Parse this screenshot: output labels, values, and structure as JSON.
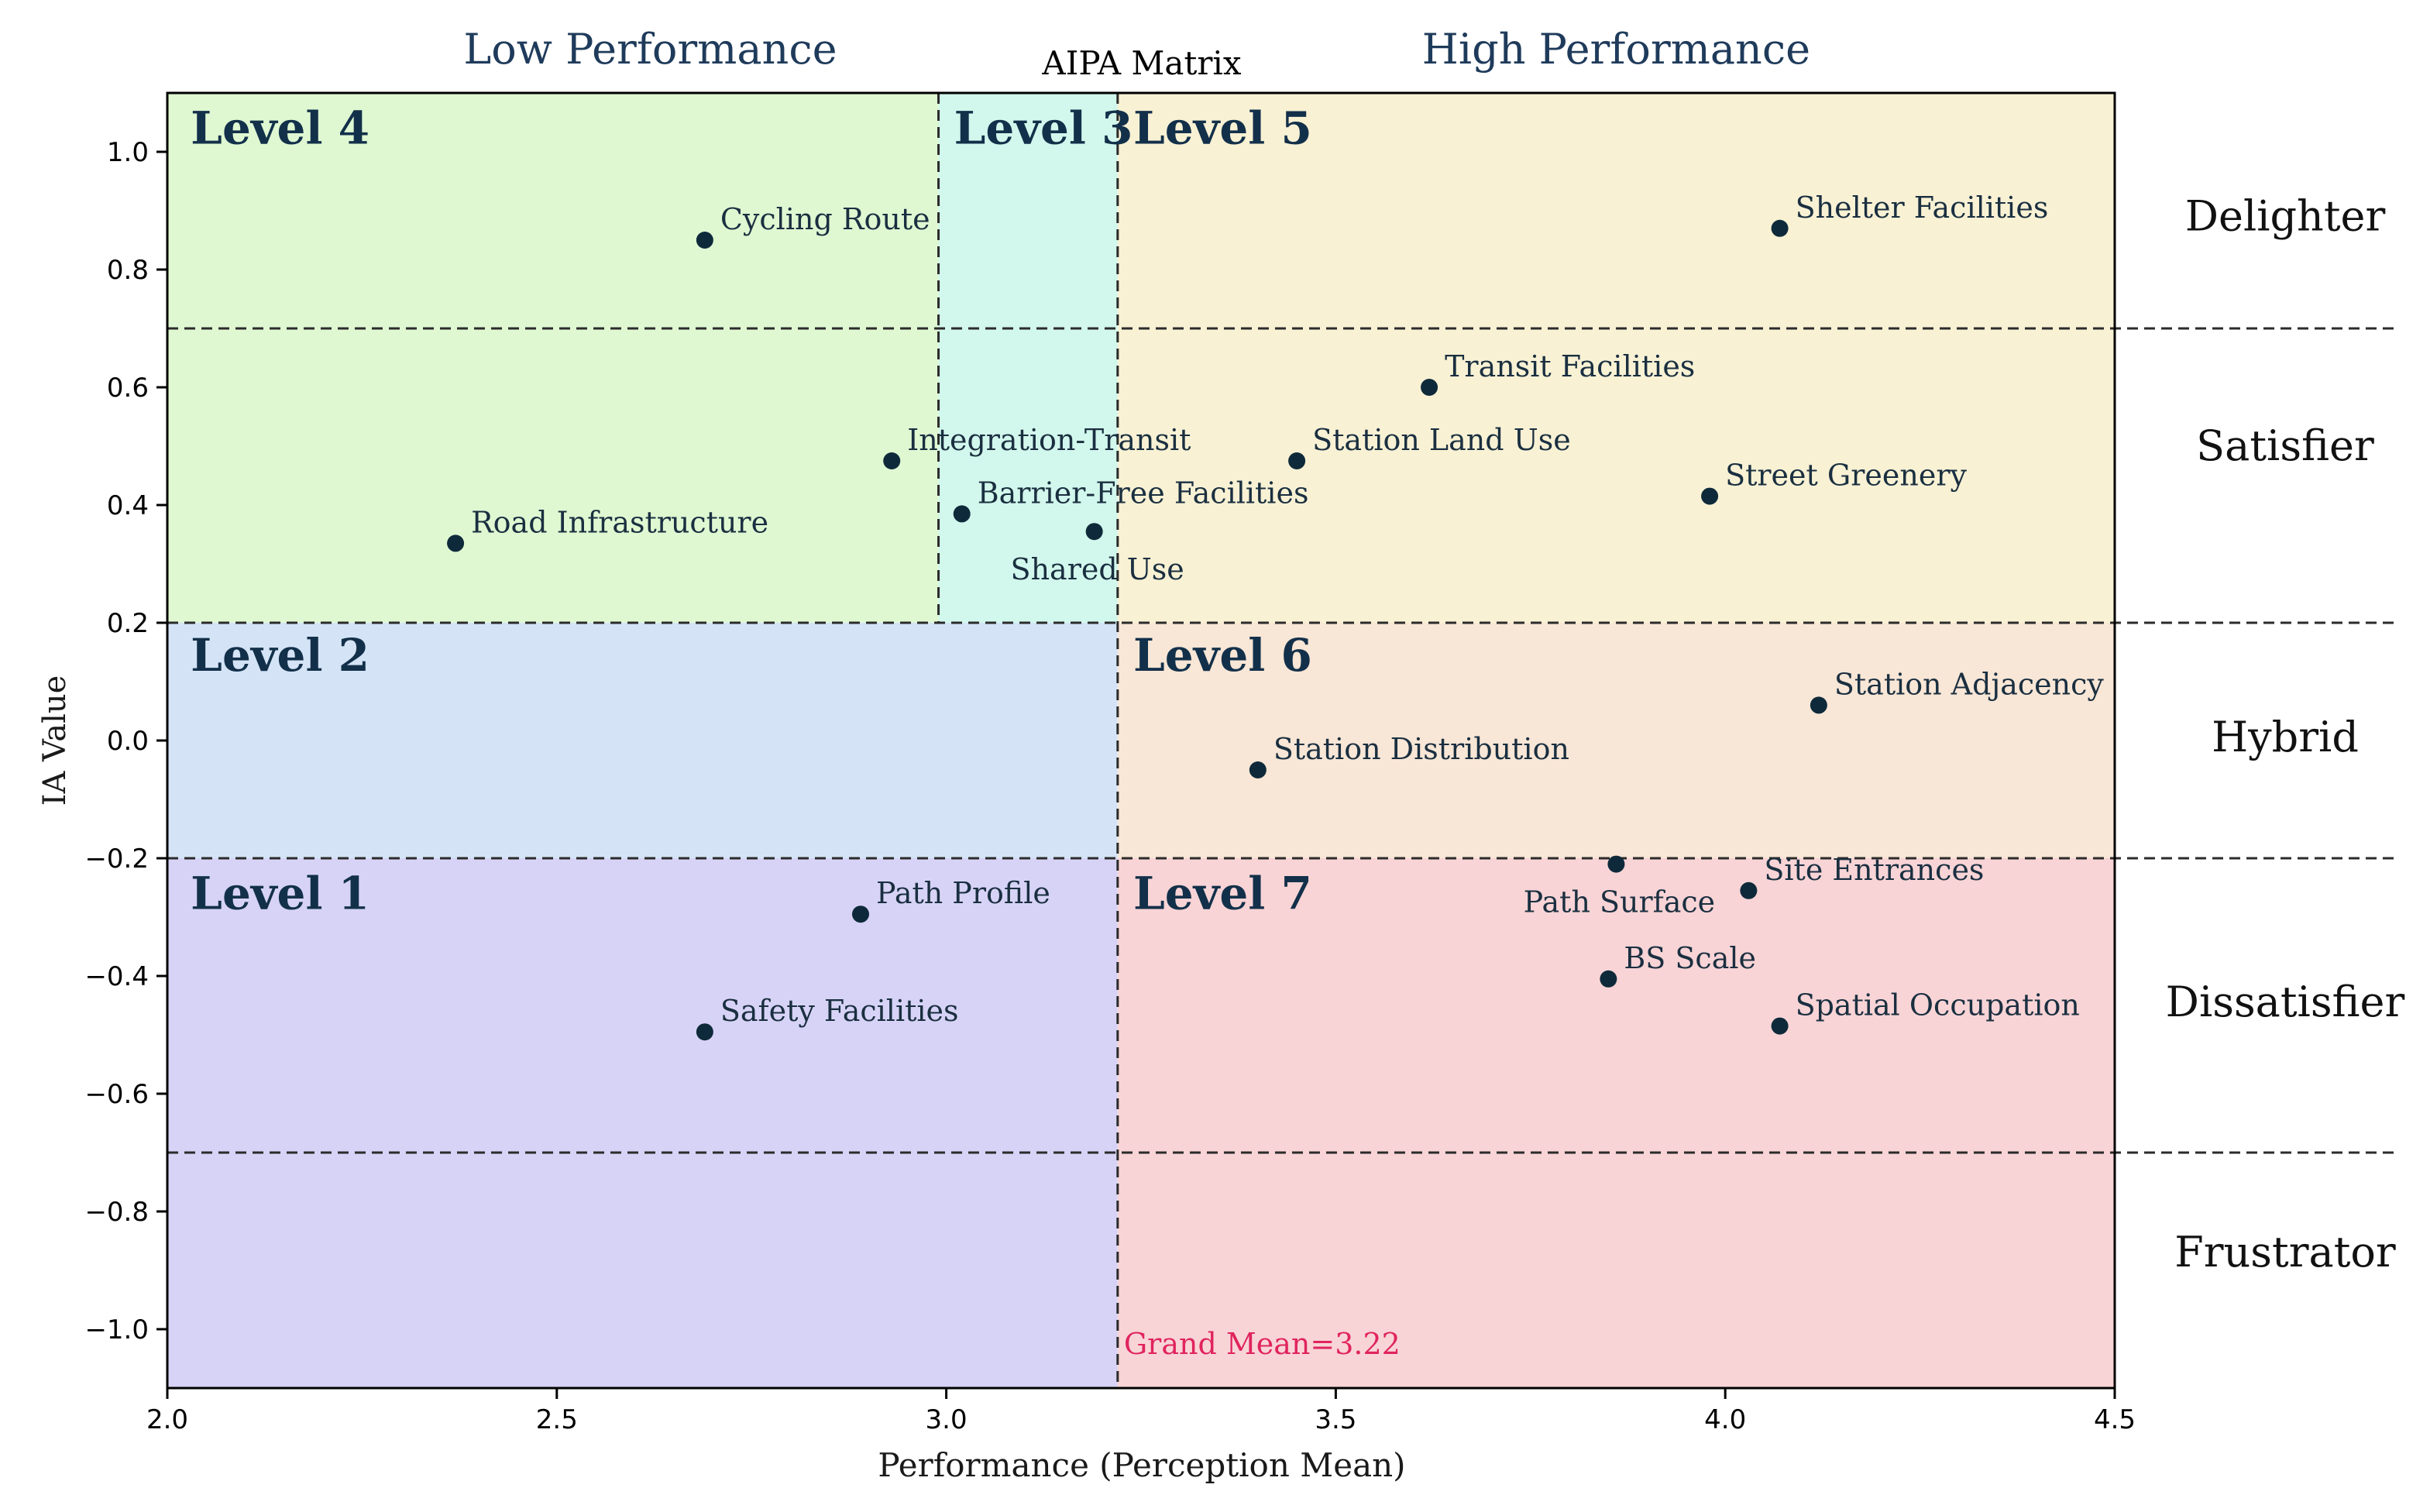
{
  "chart_data": {
    "type": "scatter",
    "title": "AIPA Matrix",
    "xlabel": "Performance (Perception Mean)",
    "ylabel": "IA Value",
    "xlim": [
      2.0,
      4.5
    ],
    "ylim": [
      -1.1,
      1.1
    ],
    "xticks": [
      {
        "value": 2.0,
        "label": "2.0"
      },
      {
        "value": 2.5,
        "label": "2.5"
      },
      {
        "value": 3.0,
        "label": "3.0"
      },
      {
        "value": 3.5,
        "label": "3.5"
      },
      {
        "value": 4.0,
        "label": "4.0"
      },
      {
        "value": 4.5,
        "label": "4.5"
      }
    ],
    "yticks": [
      {
        "value": 1.0,
        "label": "1.0"
      },
      {
        "value": 0.8,
        "label": "0.8"
      },
      {
        "value": 0.6,
        "label": "0.6"
      },
      {
        "value": 0.4,
        "label": "0.4"
      },
      {
        "value": 0.2,
        "label": "0.2"
      },
      {
        "value": 0.0,
        "label": "0.0"
      },
      {
        "value": -0.2,
        "label": "−0.2"
      },
      {
        "value": -0.4,
        "label": "−0.4"
      },
      {
        "value": -0.6,
        "label": "−0.6"
      },
      {
        "value": -0.8,
        "label": "−0.8"
      },
      {
        "value": -1.0,
        "label": "−1.0"
      }
    ],
    "performance_headers": [
      {
        "label": "Low Performance",
        "x": 2.62
      },
      {
        "label": "High Performance",
        "x": 3.86
      }
    ],
    "grand_mean": {
      "value": 3.22,
      "label": "Grand Mean=3.22",
      "color": "#e0245e"
    },
    "ia_thresholds": [
      0.7,
      0.2,
      -0.2,
      -0.7
    ],
    "level3_boundary_x": 2.99,
    "regions": [
      {
        "name": "Level 4",
        "x": [
          2.0,
          3.22
        ],
        "y": [
          0.2,
          1.1
        ],
        "color": "#dff8d2"
      },
      {
        "name": "Level 3",
        "x": [
          2.99,
          3.22
        ],
        "y": [
          0.2,
          1.1
        ],
        "color": "#d2f7ec"
      },
      {
        "name": "Level 5",
        "x": [
          3.22,
          4.5
        ],
        "y": [
          0.2,
          1.1
        ],
        "color": "#f8f1d4"
      },
      {
        "name": "Level 2",
        "x": [
          2.0,
          3.22
        ],
        "y": [
          -0.2,
          0.2
        ],
        "color": "#d4e4f6"
      },
      {
        "name": "Level 6",
        "x": [
          3.22,
          4.5
        ],
        "y": [
          -0.2,
          0.2
        ],
        "color": "#f8e6d6"
      },
      {
        "name": "Level 1",
        "x": [
          2.0,
          3.22
        ],
        "y": [
          -1.1,
          -0.2
        ],
        "color": "#d7d3f6"
      },
      {
        "name": "Level 7",
        "x": [
          3.22,
          4.5
        ],
        "y": [
          -1.1,
          -0.2
        ],
        "color": "#f8d4d6"
      }
    ],
    "level_labels": [
      {
        "label": "Level 4",
        "x": 2.03,
        "y": 1.04
      },
      {
        "label": "Level 3",
        "x": 3.01,
        "y": 1.04
      },
      {
        "label": "Level 5",
        "x": 3.24,
        "y": 1.04
      },
      {
        "label": "Level 2",
        "x": 2.03,
        "y": 0.145
      },
      {
        "label": "Level 6",
        "x": 3.24,
        "y": 0.145
      },
      {
        "label": "Level 1",
        "x": 2.03,
        "y": -0.26
      },
      {
        "label": "Level 7",
        "x": 3.24,
        "y": -0.26
      }
    ],
    "categories": [
      {
        "label": "Delighter",
        "y": 0.89
      },
      {
        "label": "Satisfier",
        "y": 0.5
      },
      {
        "label": "Hybrid",
        "y": 0.005
      },
      {
        "label": "Dissatisfier",
        "y": -0.445
      },
      {
        "label": "Frustrator",
        "y": -0.87
      }
    ],
    "series": [
      {
        "name": "Attributes",
        "color": "#0e2a3a",
        "points": [
          {
            "label": "Cycling Route",
            "x": 2.69,
            "y": 0.85,
            "pos": "right"
          },
          {
            "label": "Shelter Facilities",
            "x": 4.07,
            "y": 0.87,
            "pos": "right"
          },
          {
            "label": "Transit Facilities",
            "x": 3.62,
            "y": 0.6,
            "pos": "right"
          },
          {
            "label": "Integration-Transit",
            "x": 2.93,
            "y": 0.475,
            "pos": "right"
          },
          {
            "label": "Station Land Use",
            "x": 3.45,
            "y": 0.475,
            "pos": "right"
          },
          {
            "label": "Street Greenery",
            "x": 3.98,
            "y": 0.415,
            "pos": "right"
          },
          {
            "label": "Barrier-Free Facilities",
            "x": 3.02,
            "y": 0.385,
            "pos": "right"
          },
          {
            "label": "Road Infrastructure",
            "x": 2.37,
            "y": 0.335,
            "pos": "right"
          },
          {
            "label": "Shared Use",
            "x": 3.19,
            "y": 0.355,
            "pos": "below"
          },
          {
            "label": "Station Adjacency",
            "x": 4.12,
            "y": 0.06,
            "pos": "right"
          },
          {
            "label": "Station Distribution",
            "x": 3.4,
            "y": -0.05,
            "pos": "right"
          },
          {
            "label": "Path Surface",
            "x": 3.86,
            "y": -0.21,
            "pos": "below"
          },
          {
            "label": "Site Entrances",
            "x": 4.03,
            "y": -0.255,
            "pos": "right"
          },
          {
            "label": "Path Profile",
            "x": 2.89,
            "y": -0.295,
            "pos": "right"
          },
          {
            "label": "BS Scale",
            "x": 3.85,
            "y": -0.405,
            "pos": "right"
          },
          {
            "label": "Spatial Occupation",
            "x": 4.07,
            "y": -0.485,
            "pos": "right"
          },
          {
            "label": "Safety Facilities",
            "x": 2.69,
            "y": -0.495,
            "pos": "right"
          }
        ]
      }
    ]
  }
}
